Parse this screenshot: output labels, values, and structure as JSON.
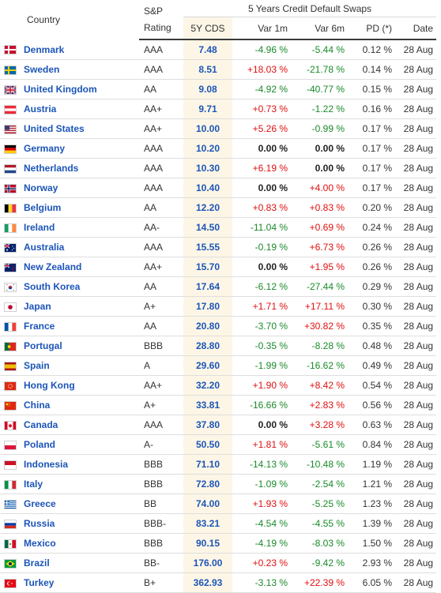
{
  "header": {
    "country": "Country",
    "rating_line1": "S&P",
    "rating_line2": "Rating",
    "group": "5 Years Credit Default Swaps",
    "cds": "5Y CDS",
    "var1m": "Var 1m",
    "var6m": "Var 6m",
    "pd": "PD (*)",
    "date": "Date"
  },
  "rows": [
    {
      "flag": "denmark-flag-icon",
      "country": "Denmark",
      "rating": "AAA",
      "cds": "7.48",
      "var1m": "-4.96 %",
      "var6m": "-5.44 %",
      "pd": "0.12 %",
      "date": "28 Aug"
    },
    {
      "flag": "sweden-flag-icon",
      "country": "Sweden",
      "rating": "AAA",
      "cds": "8.51",
      "var1m": "+18.03 %",
      "var6m": "-21.78 %",
      "pd": "0.14 %",
      "date": "28 Aug"
    },
    {
      "flag": "united-kingdom-flag-icon",
      "country": "United Kingdom",
      "rating": "AA",
      "cds": "9.08",
      "var1m": "-4.92 %",
      "var6m": "-40.77 %",
      "pd": "0.15 %",
      "date": "28 Aug"
    },
    {
      "flag": "austria-flag-icon",
      "country": "Austria",
      "rating": "AA+",
      "cds": "9.71",
      "var1m": "+0.73 %",
      "var6m": "-1.22 %",
      "pd": "0.16 %",
      "date": "28 Aug"
    },
    {
      "flag": "united-states-flag-icon",
      "country": "United States",
      "rating": "AA+",
      "cds": "10.00",
      "var1m": "+5.26 %",
      "var6m": "-0.99 %",
      "pd": "0.17 %",
      "date": "28 Aug"
    },
    {
      "flag": "germany-flag-icon",
      "country": "Germany",
      "rating": "AAA",
      "cds": "10.20",
      "var1m": "0.00 %",
      "var6m": "0.00 %",
      "pd": "0.17 %",
      "date": "28 Aug"
    },
    {
      "flag": "netherlands-flag-icon",
      "country": "Netherlands",
      "rating": "AAA",
      "cds": "10.30",
      "var1m": "+6.19 %",
      "var6m": "0.00 %",
      "pd": "0.17 %",
      "date": "28 Aug"
    },
    {
      "flag": "norway-flag-icon",
      "country": "Norway",
      "rating": "AAA",
      "cds": "10.40",
      "var1m": "0.00 %",
      "var6m": "+4.00 %",
      "pd": "0.17 %",
      "date": "28 Aug"
    },
    {
      "flag": "belgium-flag-icon",
      "country": "Belgium",
      "rating": "AA",
      "cds": "12.20",
      "var1m": "+0.83 %",
      "var6m": "+0.83 %",
      "pd": "0.20 %",
      "date": "28 Aug"
    },
    {
      "flag": "ireland-flag-icon",
      "country": "Ireland",
      "rating": "AA-",
      "cds": "14.50",
      "var1m": "-11.04 %",
      "var6m": "+0.69 %",
      "pd": "0.24 %",
      "date": "28 Aug"
    },
    {
      "flag": "australia-flag-icon",
      "country": "Australia",
      "rating": "AAA",
      "cds": "15.55",
      "var1m": "-0.19 %",
      "var6m": "+6.73 %",
      "pd": "0.26 %",
      "date": "28 Aug"
    },
    {
      "flag": "new-zealand-flag-icon",
      "country": "New Zealand",
      "rating": "AA+",
      "cds": "15.70",
      "var1m": "0.00 %",
      "var6m": "+1.95 %",
      "pd": "0.26 %",
      "date": "28 Aug"
    },
    {
      "flag": "south-korea-flag-icon",
      "country": "South Korea",
      "rating": "AA",
      "cds": "17.64",
      "var1m": "-6.12 %",
      "var6m": "-27.44 %",
      "pd": "0.29 %",
      "date": "28 Aug"
    },
    {
      "flag": "japan-flag-icon",
      "country": "Japan",
      "rating": "A+",
      "cds": "17.80",
      "var1m": "+1.71 %",
      "var6m": "+17.11 %",
      "pd": "0.30 %",
      "date": "28 Aug"
    },
    {
      "flag": "france-flag-icon",
      "country": "France",
      "rating": "AA",
      "cds": "20.80",
      "var1m": "-3.70 %",
      "var6m": "+30.82 %",
      "pd": "0.35 %",
      "date": "28 Aug"
    },
    {
      "flag": "portugal-flag-icon",
      "country": "Portugal",
      "rating": "BBB",
      "cds": "28.80",
      "var1m": "-0.35 %",
      "var6m": "-8.28 %",
      "pd": "0.48 %",
      "date": "28 Aug"
    },
    {
      "flag": "spain-flag-icon",
      "country": "Spain",
      "rating": "A",
      "cds": "29.60",
      "var1m": "-1.99 %",
      "var6m": "-16.62 %",
      "pd": "0.49 %",
      "date": "28 Aug"
    },
    {
      "flag": "hong-kong-flag-icon",
      "country": "Hong Kong",
      "rating": "AA+",
      "cds": "32.20",
      "var1m": "+1.90 %",
      "var6m": "+8.42 %",
      "pd": "0.54 %",
      "date": "28 Aug"
    },
    {
      "flag": "china-flag-icon",
      "country": "China",
      "rating": "A+",
      "cds": "33.81",
      "var1m": "-16.66 %",
      "var6m": "+2.83 %",
      "pd": "0.56 %",
      "date": "28 Aug"
    },
    {
      "flag": "canada-flag-icon",
      "country": "Canada",
      "rating": "AAA",
      "cds": "37.80",
      "var1m": "0.00 %",
      "var6m": "+3.28 %",
      "pd": "0.63 %",
      "date": "28 Aug"
    },
    {
      "flag": "poland-flag-icon",
      "country": "Poland",
      "rating": "A-",
      "cds": "50.50",
      "var1m": "+1.81 %",
      "var6m": "-5.61 %",
      "pd": "0.84 %",
      "date": "28 Aug"
    },
    {
      "flag": "indonesia-flag-icon",
      "country": "Indonesia",
      "rating": "BBB",
      "cds": "71.10",
      "var1m": "-14.13 %",
      "var6m": "-10.48 %",
      "pd": "1.19 %",
      "date": "28 Aug"
    },
    {
      "flag": "italy-flag-icon",
      "country": "Italy",
      "rating": "BBB",
      "cds": "72.80",
      "var1m": "-1.09 %",
      "var6m": "-2.54 %",
      "pd": "1.21 %",
      "date": "28 Aug"
    },
    {
      "flag": "greece-flag-icon",
      "country": "Greece",
      "rating": "BB",
      "cds": "74.00",
      "var1m": "+1.93 %",
      "var6m": "-5.25 %",
      "pd": "1.23 %",
      "date": "28 Aug"
    },
    {
      "flag": "russia-flag-icon",
      "country": "Russia",
      "rating": "BBB-",
      "cds": "83.21",
      "var1m": "-4.54 %",
      "var6m": "-4.55 %",
      "pd": "1.39 %",
      "date": "28 Aug"
    },
    {
      "flag": "mexico-flag-icon",
      "country": "Mexico",
      "rating": "BBB",
      "cds": "90.15",
      "var1m": "-4.19 %",
      "var6m": "-8.03 %",
      "pd": "1.50 %",
      "date": "28 Aug"
    },
    {
      "flag": "brazil-flag-icon",
      "country": "Brazil",
      "rating": "BB-",
      "cds": "176.00",
      "var1m": "+0.23 %",
      "var6m": "-9.42 %",
      "pd": "2.93 %",
      "date": "28 Aug"
    },
    {
      "flag": "turkey-flag-icon",
      "country": "Turkey",
      "rating": "B+",
      "cds": "362.93",
      "var1m": "-3.13 %",
      "var6m": "+22.39 %",
      "pd": "6.05 %",
      "date": "28 Aug"
    }
  ]
}
